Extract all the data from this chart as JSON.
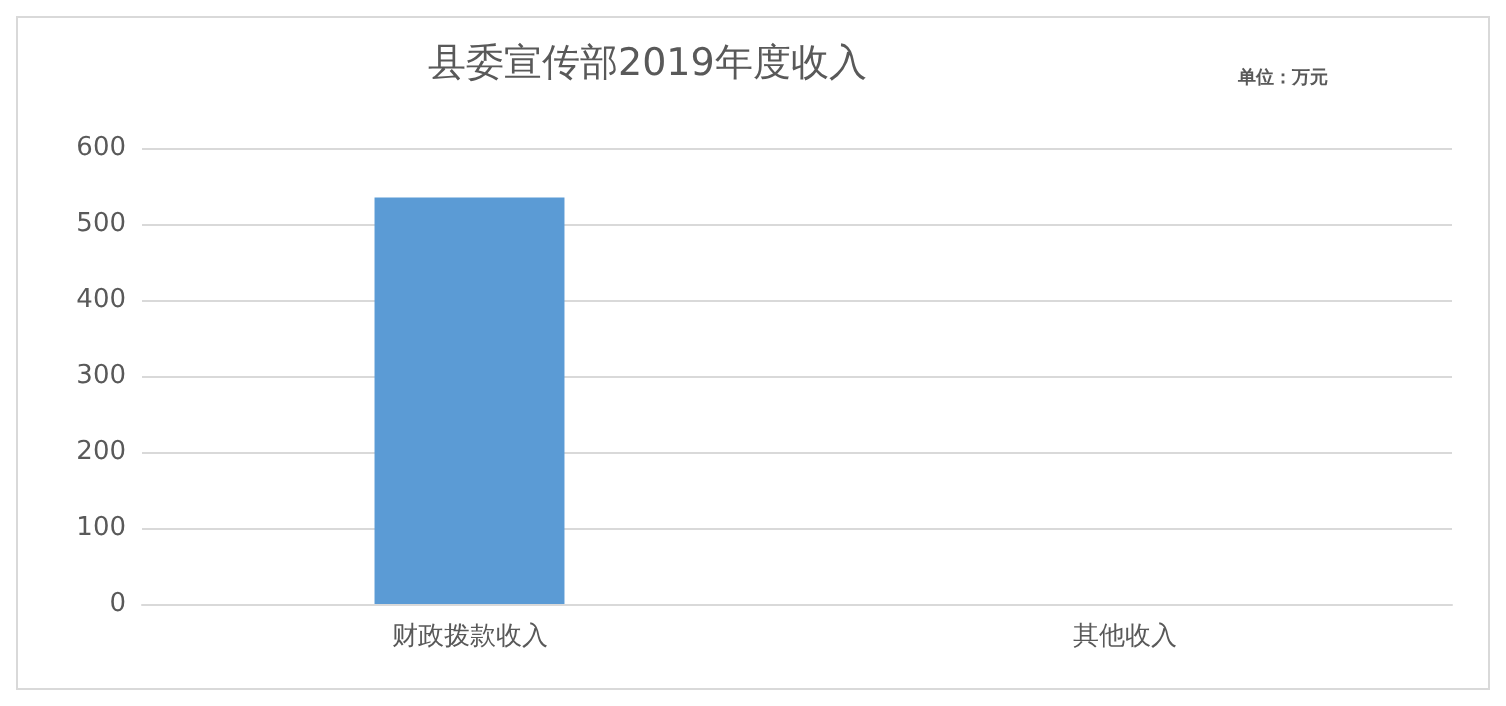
{
  "chart_data": {
    "type": "bar",
    "title": "县委宣传部2019年度收入",
    "annotations": [
      "单位：万元"
    ],
    "categories": [
      "财政拨款收入",
      "其他收入"
    ],
    "values": [
      535,
      0
    ],
    "color": "#5b9bd5",
    "ylim": [
      0,
      600
    ],
    "yticks": [
      0,
      100,
      200,
      300,
      400,
      500,
      600
    ],
    "grid": "y"
  }
}
